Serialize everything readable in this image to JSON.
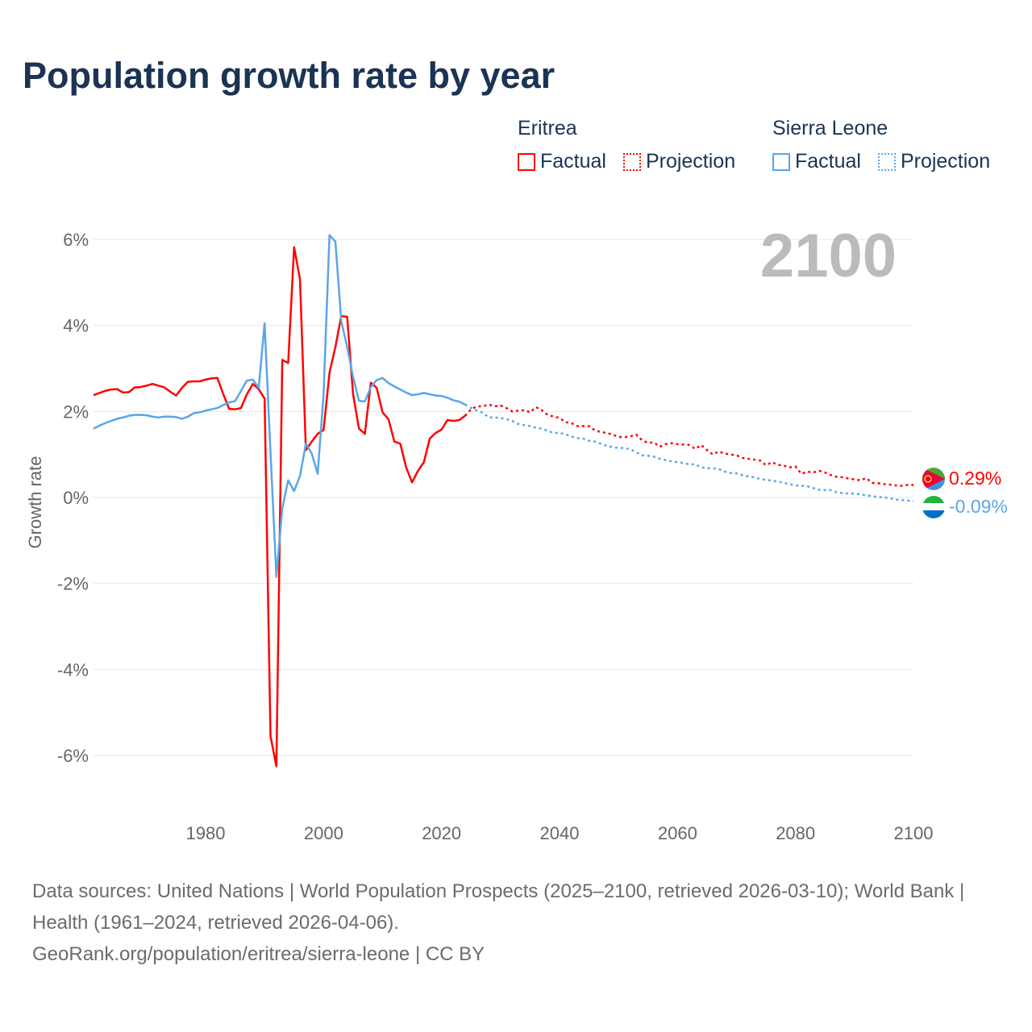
{
  "title": "Population growth rate by year",
  "current_year": "2100",
  "legend": {
    "groups": [
      {
        "name": "Eritrea",
        "color": "#ff0000",
        "factual": "Factual",
        "projection": "Projection"
      },
      {
        "name": "Sierra Leone",
        "color": "#5aa5e8",
        "factual": "Factual",
        "projection": "Projection"
      }
    ]
  },
  "footer": {
    "sources": "Data sources: United Nations | World Population Prospects (2025–2100, retrieved 2026-03-10); World Bank | Health (1961–2024, retrieved 2026-04-06).",
    "credit": "GeoRank.org/population/eritrea/sierra-leone | CC BY"
  },
  "chart_data": {
    "type": "line",
    "title": "Population growth rate by year",
    "xlabel": "",
    "ylabel": "Growth rate",
    "xlim": [
      1961,
      2100
    ],
    "ylim": [
      -7,
      6.5
    ],
    "x_ticks": [
      1980,
      2000,
      2020,
      2040,
      2060,
      2080,
      2100
    ],
    "y_ticks": [
      6,
      4,
      2,
      0,
      -2,
      -4,
      -6
    ],
    "y_tick_labels": [
      "6%",
      "4%",
      "2%",
      "0%",
      "-2%",
      "-4%",
      "-6%"
    ],
    "grid": true,
    "series": [
      {
        "name": "Eritrea",
        "color": "#ff0000",
        "end_label": "0.29%",
        "factual": {
          "start": 1961,
          "values": [
            2.38,
            2.43,
            2.48,
            2.51,
            2.52,
            2.44,
            2.45,
            2.56,
            2.57,
            2.6,
            2.64,
            2.6,
            2.56,
            2.46,
            2.37,
            2.55,
            2.69,
            2.7,
            2.7,
            2.74,
            2.77,
            2.78,
            2.4,
            2.06,
            2.05,
            2.08,
            2.4,
            2.64,
            2.52,
            2.3,
            -5.55,
            -6.25,
            3.2,
            3.13,
            5.82,
            5.08,
            1.1,
            1.3,
            1.48,
            1.57,
            2.9,
            3.5,
            4.22,
            4.2,
            2.4,
            1.6,
            1.48,
            2.67,
            2.55,
            1.98,
            1.82,
            1.3,
            1.25,
            0.7,
            0.35,
            0.62,
            0.82,
            1.37,
            1.5,
            1.58,
            1.8,
            1.78,
            1.8,
            1.9
          ]
        },
        "projection": {
          "start": 2024,
          "values": [
            1.9,
            2.05,
            2.12,
            2.12,
            2.16,
            2.12,
            2.14,
            2.08,
            2.0,
            2.02,
            2.03,
            1.98,
            2.1,
            2.03,
            1.92,
            1.88,
            1.85,
            1.75,
            1.73,
            1.66,
            1.66,
            1.66,
            1.56,
            1.52,
            1.5,
            1.46,
            1.41,
            1.4,
            1.42,
            1.46,
            1.33,
            1.27,
            1.28,
            1.18,
            1.24,
            1.26,
            1.24,
            1.23,
            1.22,
            1.13,
            1.22,
            1.1,
            1.0,
            1.07,
            1.02,
            1.0,
            0.98,
            0.92,
            0.9,
            0.88,
            0.86,
            0.75,
            0.82,
            0.76,
            0.74,
            0.7,
            0.72,
            0.55,
            0.6,
            0.58,
            0.62,
            0.58,
            0.52,
            0.48,
            0.47,
            0.44,
            0.42,
            0.4,
            0.45,
            0.34,
            0.33,
            0.31,
            0.3,
            0.28,
            0.27,
            0.29,
            0.29
          ]
        }
      },
      {
        "name": "Sierra Leone",
        "color": "#5aa5e8",
        "end_label": "-0.09%",
        "factual": {
          "start": 1961,
          "values": [
            1.6,
            1.67,
            1.73,
            1.78,
            1.83,
            1.86,
            1.9,
            1.92,
            1.92,
            1.91,
            1.88,
            1.86,
            1.88,
            1.88,
            1.87,
            1.83,
            1.88,
            1.96,
            1.98,
            2.02,
            2.05,
            2.08,
            2.15,
            2.21,
            2.24,
            2.48,
            2.72,
            2.74,
            2.55,
            4.05,
            1.05,
            -1.85,
            -0.25,
            0.4,
            0.15,
            0.5,
            1.25,
            1.02,
            0.55,
            2.4,
            6.1,
            5.95,
            4.1,
            3.5,
            2.8,
            2.25,
            2.23,
            2.57,
            2.73,
            2.78,
            2.66,
            2.58,
            2.51,
            2.44,
            2.38,
            2.4,
            2.43,
            2.4,
            2.37,
            2.36,
            2.32,
            2.26,
            2.23,
            2.16
          ]
        },
        "projection": {
          "start": 2024,
          "values": [
            2.16,
            2.08,
            2.02,
            1.97,
            1.86,
            1.86,
            1.85,
            1.82,
            1.78,
            1.71,
            1.68,
            1.66,
            1.62,
            1.6,
            1.55,
            1.5,
            1.5,
            1.47,
            1.42,
            1.38,
            1.37,
            1.32,
            1.3,
            1.25,
            1.2,
            1.17,
            1.15,
            1.15,
            1.12,
            1.05,
            0.98,
            0.97,
            0.95,
            0.9,
            0.87,
            0.84,
            0.82,
            0.8,
            0.77,
            0.77,
            0.7,
            0.68,
            0.68,
            0.66,
            0.6,
            0.57,
            0.56,
            0.52,
            0.49,
            0.47,
            0.43,
            0.41,
            0.39,
            0.37,
            0.34,
            0.31,
            0.28,
            0.27,
            0.26,
            0.22,
            0.18,
            0.17,
            0.17,
            0.12,
            0.1,
            0.09,
            0.09,
            0.07,
            0.05,
            0.03,
            0.01,
            0.0,
            -0.02,
            -0.05,
            -0.06,
            -0.07,
            -0.09
          ]
        }
      }
    ]
  }
}
